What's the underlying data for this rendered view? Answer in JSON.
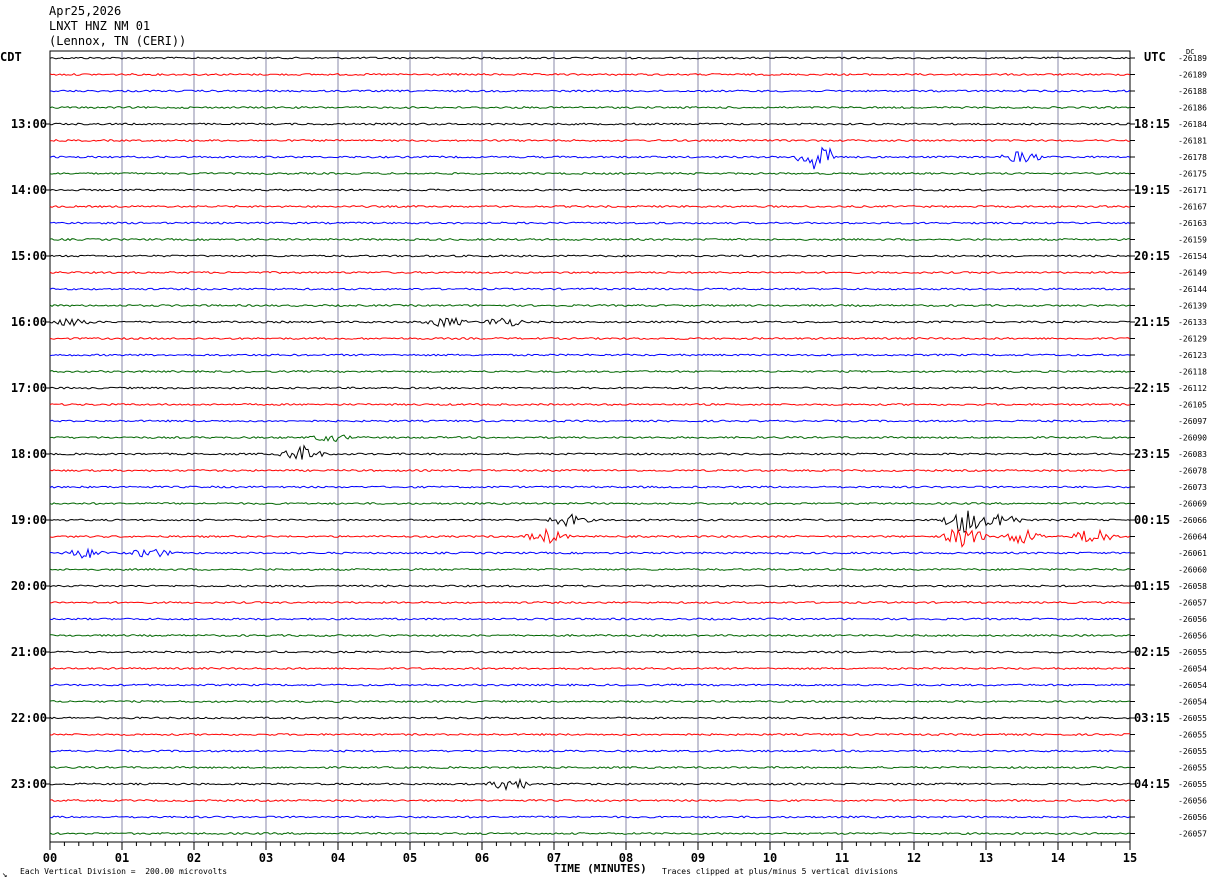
{
  "header": {
    "date": "Apr25,2026",
    "station": "LNXT HNZ NM 01",
    "location": "(Lennox, TN (CERI))"
  },
  "axes": {
    "left_label": "CDT",
    "right_label": "UTC",
    "dc_label": "DC",
    "x_title": "TIME (MINUTES)"
  },
  "footer": {
    "scale_note": "Each Vertical Division =  200.00 microvolts",
    "clip_note": "Traces clipped at plus/minus 5 vertical divisions",
    "corner_mark": "↘"
  },
  "chart_data": {
    "type": "line",
    "xlabel": "TIME (MINUTES)",
    "xlim": [
      0,
      15
    ],
    "x_ticks": [
      "00",
      "01",
      "02",
      "03",
      "04",
      "05",
      "06",
      "07",
      "08",
      "09",
      "10",
      "11",
      "12",
      "13",
      "14",
      "15"
    ],
    "left_hour_labels": [
      "13:00",
      "14:00",
      "15:00",
      "16:00",
      "17:00",
      "18:00",
      "19:00",
      "20:00",
      "21:00",
      "22:00",
      "23:00"
    ],
    "right_hour_labels": [
      "18:15",
      "19:15",
      "20:15",
      "21:15",
      "22:15",
      "23:15",
      "00:15",
      "01:15",
      "02:15",
      "03:15",
      "04:15"
    ],
    "trace_colors": [
      "#000000",
      "#ff0000",
      "#0000ff",
      "#006600"
    ],
    "dc_offsets": [
      "-26189",
      "-26189",
      "-26188",
      "-26186",
      "-26184",
      "-26181",
      "-26178",
      "-26175",
      "-26171",
      "-26167",
      "-26163",
      "-26159",
      "-26154",
      "-26149",
      "-26144",
      "-26139",
      "-26133",
      "-26129",
      "-26123",
      "-26118",
      "-26112",
      "-26105",
      "-26097",
      "-26090",
      "-26083",
      "-26078",
      "-26073",
      "-26069",
      "-26066",
      "-26064",
      "-26061",
      "-26060",
      "-26058",
      "-26057",
      "-26056",
      "-26056",
      "-26055",
      "-26054",
      "-26054",
      "-26054",
      "-26055",
      "-26055",
      "-26055",
      "-26055",
      "-26055",
      "-26056",
      "-26056",
      "-26057"
    ],
    "events": [
      {
        "trace": 6,
        "minute": 10.65,
        "amplitude": 16
      },
      {
        "trace": 6,
        "minute": 13.5,
        "amplitude": 6
      },
      {
        "trace": 16,
        "minute": 0.3,
        "amplitude": 4
      },
      {
        "trace": 16,
        "minute": 5.5,
        "amplitude": 5
      },
      {
        "trace": 16,
        "minute": 6.3,
        "amplitude": 5
      },
      {
        "trace": 23,
        "minute": 3.9,
        "amplitude": 4
      },
      {
        "trace": 24,
        "minute": 3.5,
        "amplitude": 8
      },
      {
        "trace": 28,
        "minute": 7.2,
        "amplitude": 6
      },
      {
        "trace": 28,
        "minute": 12.7,
        "amplitude": 14
      },
      {
        "trace": 28,
        "minute": 13.2,
        "amplitude": 8
      },
      {
        "trace": 29,
        "minute": 6.9,
        "amplitude": 7
      },
      {
        "trace": 29,
        "minute": 12.7,
        "amplitude": 12
      },
      {
        "trace": 29,
        "minute": 13.5,
        "amplitude": 8
      },
      {
        "trace": 29,
        "minute": 14.5,
        "amplitude": 9
      },
      {
        "trace": 30,
        "minute": 0.5,
        "amplitude": 5
      },
      {
        "trace": 30,
        "minute": 1.4,
        "amplitude": 5
      },
      {
        "trace": 44,
        "minute": 6.4,
        "amplitude": 7
      }
    ]
  }
}
